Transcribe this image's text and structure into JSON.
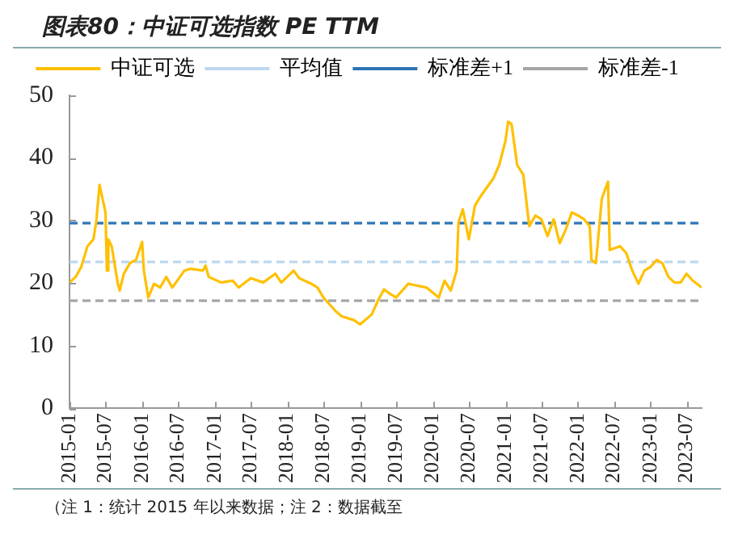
{
  "chart_data": {
    "type": "line",
    "title": "图表80：中证可选指数 PE TTM",
    "x": [
      "2015-01-01",
      "2015-02-01",
      "2015-03-01",
      "2015-04-01",
      "2015-05-01",
      "2015-05-15",
      "2015-06-01",
      "2015-07-01",
      "2015-07-08",
      "2015-07-15",
      "2015-08-01",
      "2015-09-01",
      "2015-09-10",
      "2015-10-01",
      "2015-11-01",
      "2015-12-01",
      "2016-01-01",
      "2016-01-10",
      "2016-02-01",
      "2016-03-01",
      "2016-04-01",
      "2016-05-01",
      "2016-06-01",
      "2016-08-01",
      "2016-09-01",
      "2016-11-01",
      "2016-11-15",
      "2016-12-01",
      "2017-02-01",
      "2017-04-01",
      "2017-05-01",
      "2017-07-01",
      "2017-09-01",
      "2017-11-01",
      "2017-12-01",
      "2018-02-01",
      "2018-03-01",
      "2018-05-01",
      "2018-06-01",
      "2018-07-01",
      "2018-09-01",
      "2018-10-01",
      "2018-12-01",
      "2019-01-01",
      "2019-03-01",
      "2019-04-01",
      "2019-05-01",
      "2019-06-01",
      "2019-07-01",
      "2019-09-01",
      "2019-10-01",
      "2019-12-01",
      "2020-02-01",
      "2020-03-01",
      "2020-04-01",
      "2020-05-01",
      "2020-05-10",
      "2020-06-01",
      "2020-07-01",
      "2020-08-01",
      "2020-09-01",
      "2020-11-01",
      "2020-12-01",
      "2021-01-01",
      "2021-01-15",
      "2021-02-01",
      "2021-03-01",
      "2021-04-01",
      "2021-05-01",
      "2021-06-01",
      "2021-07-01",
      "2021-08-01",
      "2021-09-01",
      "2021-10-01",
      "2021-11-01",
      "2021-12-01",
      "2022-01-01",
      "2022-02-01",
      "2022-03-01",
      "2022-03-10",
      "2022-04-01",
      "2022-05-01",
      "2022-06-01",
      "2022-06-10",
      "2022-08-01",
      "2022-09-01",
      "2022-10-01",
      "2022-11-01",
      "2022-12-01",
      "2023-01-01",
      "2023-02-01",
      "2023-03-01",
      "2023-04-01",
      "2023-05-01",
      "2023-06-01",
      "2023-07-01",
      "2023-08-01",
      "2023-09-15"
    ],
    "series": [
      {
        "name": "中证可选",
        "color": "#ffc000",
        "values": [
          20.1,
          21,
          22.6,
          25.9,
          27,
          29.7,
          35.7,
          31.3,
          22,
          27,
          25.9,
          19.9,
          18.8,
          21.5,
          23.2,
          23.7,
          26.6,
          22,
          17.7,
          19.9,
          19.3,
          21,
          19.3,
          22,
          22.3,
          22,
          22.8,
          21,
          20.1,
          20.4,
          19.3,
          20.8,
          20.1,
          21.5,
          20.1,
          22,
          20.8,
          19.9,
          19.3,
          17.7,
          15.5,
          14.7,
          14.1,
          13.4,
          15,
          17.2,
          19,
          18.3,
          17.7,
          19.9,
          19.7,
          19.3,
          17.7,
          20.4,
          18.8,
          22,
          29.7,
          31.8,
          27,
          32.4,
          34,
          36.7,
          38.9,
          42.7,
          45.8,
          45.4,
          38.9,
          37.3,
          29.1,
          30.8,
          30.2,
          27.5,
          30.2,
          26.4,
          28.6,
          31.3,
          30.8,
          30.2,
          29.1,
          23.7,
          23.2,
          33.5,
          36.2,
          25.3,
          25.9,
          24.8,
          22,
          19.9,
          22,
          22.6,
          23.7,
          23.2,
          21,
          20.1,
          20.1,
          21.5,
          20.4,
          19.3
        ]
      }
    ],
    "ref_lines": [
      {
        "axis": "y",
        "value": 23.4,
        "label": "平均值",
        "color": "#bdd7ee",
        "line_style": "dashed"
      },
      {
        "axis": "y",
        "value": 29.6,
        "label": "标准差+1",
        "color": "#2e75b6",
        "line_style": "dashed"
      },
      {
        "axis": "y",
        "value": 17.2,
        "label": "标准差-1",
        "color": "#a6a6a6",
        "line_style": "dashed"
      }
    ],
    "xlim": [
      "2015-01-01",
      "2023-09-15"
    ],
    "xticks": [
      {
        "value": "2015-01-01",
        "label": "2015-01"
      },
      {
        "value": "2015-07-01",
        "label": "2015-07"
      },
      {
        "value": "2016-01-01",
        "label": "2016-01"
      },
      {
        "value": "2016-07-01",
        "label": "2016-07"
      },
      {
        "value": "2017-01-01",
        "label": "2017-01"
      },
      {
        "value": "2017-07-01",
        "label": "2017-07"
      },
      {
        "value": "2018-01-01",
        "label": "2018-01"
      },
      {
        "value": "2018-07-01",
        "label": "2018-07"
      },
      {
        "value": "2019-01-01",
        "label": "2019-01"
      },
      {
        "value": "2019-07-01",
        "label": "2019-07"
      },
      {
        "value": "2020-01-01",
        "label": "2020-01"
      },
      {
        "value": "2020-07-01",
        "label": "2020-07"
      },
      {
        "value": "2021-01-01",
        "label": "2021-01"
      },
      {
        "value": "2021-07-01",
        "label": "2021-07"
      },
      {
        "value": "2022-01-01",
        "label": "2022-01"
      },
      {
        "value": "2022-07-01",
        "label": "2022-07"
      },
      {
        "value": "2023-01-01",
        "label": "2023-01"
      },
      {
        "value": "2023-07-01",
        "label": "2023-07"
      }
    ],
    "ylim": [
      0,
      50
    ],
    "yticks": [
      0,
      10,
      20,
      30,
      40,
      50
    ],
    "grid": false,
    "legend": "top",
    "marker": "none",
    "line_style": "solid",
    "annotations": [
      "（注 1：统计 2015 年以来数据；注 2：数据截至"
    ]
  }
}
